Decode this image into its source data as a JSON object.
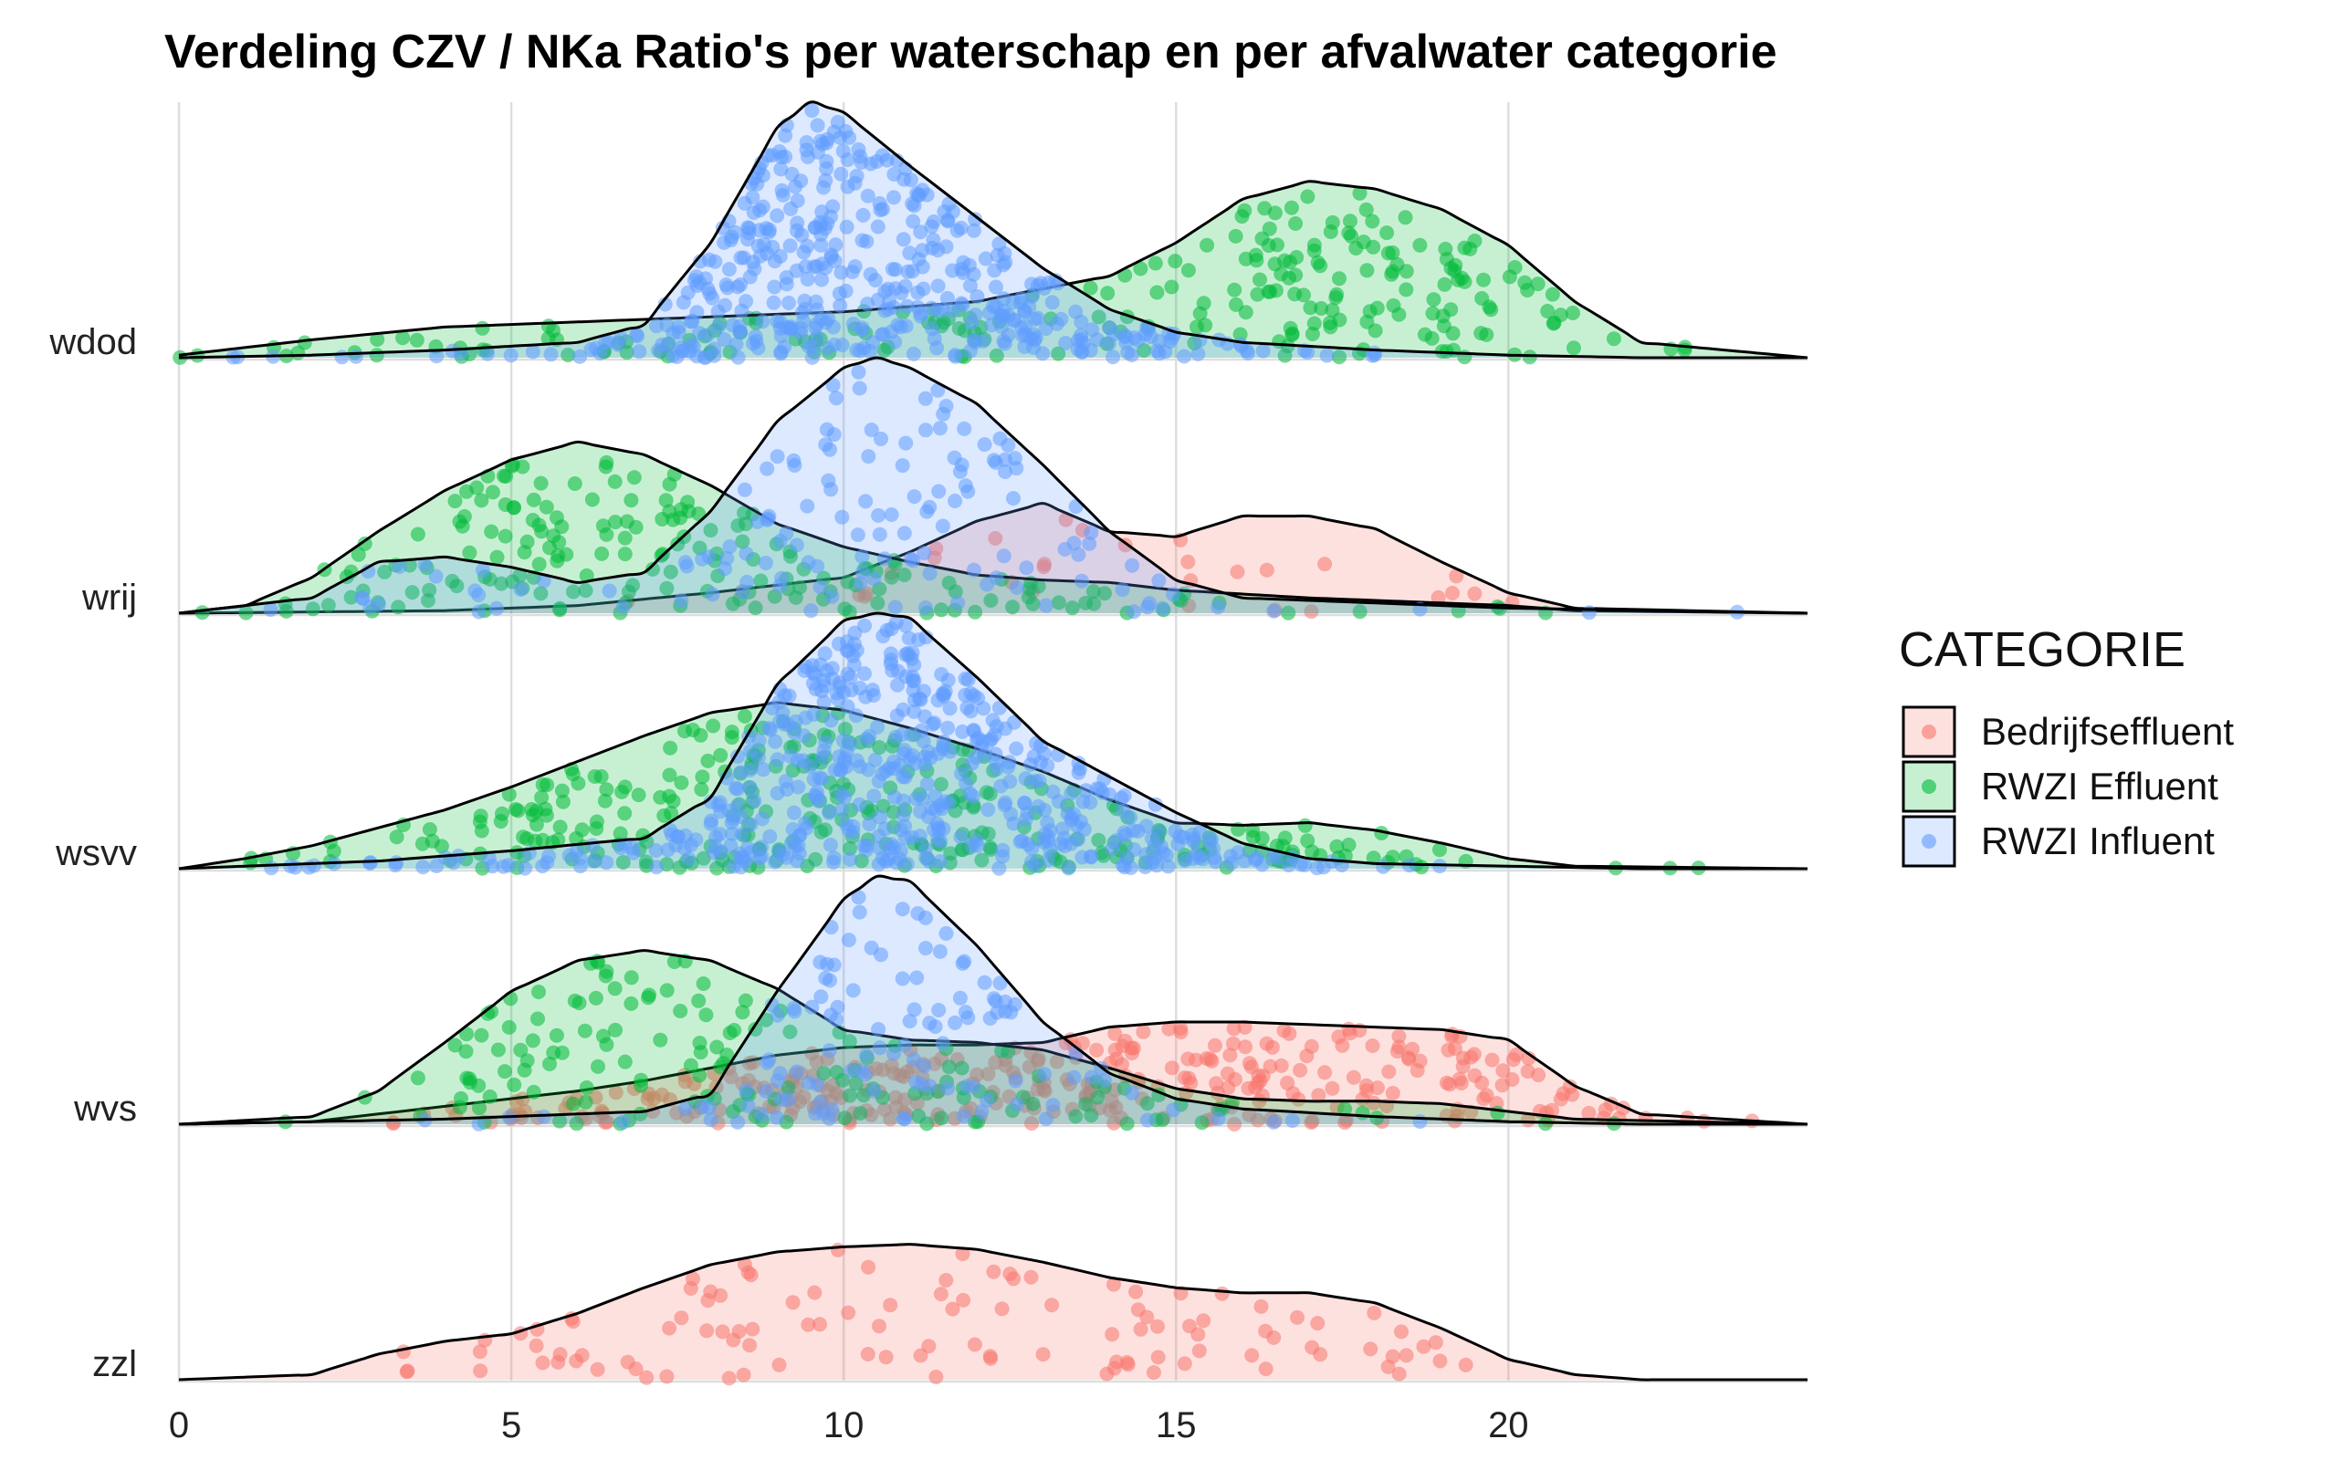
{
  "chart_data": {
    "type": "ridgeline",
    "title": "Verdeling CZV / NKa Ratio's per waterschap en per afvalwater categorie",
    "xlabel": "",
    "ylabel": "",
    "xlim": [
      0,
      24.5
    ],
    "x_ticks": [
      0,
      5,
      10,
      15,
      20
    ],
    "grid": true,
    "legend": {
      "title": "CATEGORIE",
      "position": "right",
      "entries": [
        {
          "name": "Bedrijfseffluent",
          "color": "#F8766D"
        },
        {
          "name": "RWZI Effluent",
          "color": "#00BA38"
        },
        {
          "name": "RWZI Influent",
          "color": "#619CFF"
        }
      ]
    },
    "groups": [
      {
        "name": "wdod",
        "series": [
          {
            "category": "RWZI Effluent",
            "n_points": 230,
            "density_x": [
              0,
              2,
              4,
              6,
              8,
              10,
              12,
              14,
              15,
              16,
              17,
              18,
              19,
              20,
              21,
              22,
              24.5
            ],
            "density_y": [
              0.01,
              0.07,
              0.12,
              0.14,
              0.16,
              0.18,
              0.22,
              0.32,
              0.45,
              0.62,
              0.69,
              0.66,
              0.58,
              0.44,
              0.22,
              0.06,
              0.0
            ]
          },
          {
            "category": "RWZI Influent",
            "n_points": 460,
            "density_x": [
              0,
              2,
              4,
              6,
              7,
              8,
              9,
              9.5,
              10,
              11,
              12,
              13,
              14,
              15,
              16,
              18,
              20,
              22,
              24.5
            ],
            "density_y": [
              0.0,
              0.01,
              0.03,
              0.06,
              0.13,
              0.45,
              0.9,
              1.0,
              0.96,
              0.75,
              0.55,
              0.35,
              0.19,
              0.1,
              0.06,
              0.03,
              0.01,
              0.0,
              0.0
            ]
          }
        ]
      },
      {
        "name": "wrij",
        "series": [
          {
            "category": "Bedrijfseffluent",
            "n_points": 30,
            "density_x": [
              0,
              4,
              6,
              8,
              10,
              11,
              12,
              13,
              14,
              15,
              16,
              17,
              18,
              19,
              20,
              21,
              24.5
            ],
            "density_y": [
              0.0,
              0.01,
              0.03,
              0.08,
              0.14,
              0.24,
              0.36,
              0.43,
              0.32,
              0.3,
              0.38,
              0.38,
              0.33,
              0.2,
              0.08,
              0.02,
              0.0
            ]
          },
          {
            "category": "RWZI Effluent",
            "n_points": 190,
            "density_x": [
              0,
              1,
              2,
              3,
              4,
              5,
              6,
              7,
              8,
              9,
              10,
              11,
              12,
              13,
              14,
              15,
              17,
              19,
              20,
              21,
              24.5
            ],
            "density_y": [
              0.0,
              0.03,
              0.14,
              0.32,
              0.48,
              0.6,
              0.67,
              0.62,
              0.5,
              0.35,
              0.26,
              0.2,
              0.15,
              0.13,
              0.12,
              0.09,
              0.06,
              0.04,
              0.03,
              0.01,
              0.0
            ]
          },
          {
            "category": "RWZI Influent",
            "n_points": 140,
            "density_x": [
              0,
              2,
              3,
              4,
              5,
              6,
              7,
              8,
              9,
              10,
              10.5,
              11,
              12,
              13,
              14,
              15,
              16,
              18,
              20,
              24.5
            ],
            "density_y": [
              0.0,
              0.06,
              0.2,
              0.22,
              0.18,
              0.12,
              0.16,
              0.4,
              0.75,
              0.96,
              1.0,
              0.96,
              0.82,
              0.58,
              0.32,
              0.13,
              0.06,
              0.04,
              0.02,
              0.0
            ]
          }
        ]
      },
      {
        "name": "wsvv",
        "series": [
          {
            "category": "RWZI Effluent",
            "n_points": 300,
            "density_x": [
              0,
              1,
              2,
              3,
              4,
              5,
              6,
              7,
              8,
              9,
              10,
              11,
              12,
              13,
              14,
              15,
              16,
              17,
              18,
              19,
              20,
              21,
              24.5
            ],
            "density_y": [
              0.0,
              0.04,
              0.09,
              0.16,
              0.23,
              0.32,
              0.42,
              0.52,
              0.61,
              0.65,
              0.62,
              0.55,
              0.47,
              0.38,
              0.27,
              0.18,
              0.17,
              0.18,
              0.15,
              0.1,
              0.04,
              0.01,
              0.0
            ]
          },
          {
            "category": "RWZI Influent",
            "n_points": 520,
            "density_x": [
              0,
              1,
              3,
              5,
              7,
              8,
              9,
              10,
              10.5,
              11,
              12,
              13,
              14,
              15,
              16,
              17,
              18,
              20,
              22,
              24.5
            ],
            "density_y": [
              0.0,
              0.01,
              0.03,
              0.07,
              0.12,
              0.28,
              0.72,
              0.97,
              1.0,
              0.98,
              0.75,
              0.5,
              0.36,
              0.22,
              0.1,
              0.04,
              0.02,
              0.01,
              0.0,
              0.0
            ]
          }
        ]
      },
      {
        "name": "wvs",
        "series": [
          {
            "category": "Bedrijfseffluent",
            "n_points": 330,
            "density_x": [
              0,
              2,
              3,
              4,
              5,
              6,
              7,
              8,
              9,
              10,
              11,
              12,
              13,
              14,
              15,
              16,
              17,
              18,
              19,
              20,
              21,
              22,
              24.5
            ],
            "density_y": [
              0.0,
              0.01,
              0.04,
              0.07,
              0.1,
              0.13,
              0.17,
              0.22,
              0.27,
              0.3,
              0.31,
              0.31,
              0.32,
              0.38,
              0.4,
              0.4,
              0.39,
              0.38,
              0.37,
              0.33,
              0.15,
              0.04,
              0.0
            ]
          },
          {
            "category": "RWZI Effluent",
            "n_points": 160,
            "density_x": [
              0,
              2,
              3,
              4,
              5,
              6,
              7,
              8,
              9,
              10,
              11,
              12,
              13,
              14,
              15,
              16,
              17,
              18,
              19,
              20,
              21,
              24.5
            ],
            "density_y": [
              0.0,
              0.03,
              0.13,
              0.32,
              0.52,
              0.64,
              0.68,
              0.64,
              0.53,
              0.37,
              0.33,
              0.32,
              0.29,
              0.22,
              0.14,
              0.1,
              0.09,
              0.09,
              0.08,
              0.05,
              0.02,
              0.0
            ]
          },
          {
            "category": "RWZI Influent",
            "n_points": 120,
            "density_x": [
              0,
              2,
              4,
              6,
              7,
              8,
              9,
              10,
              10.5,
              11,
              12,
              13,
              14,
              15,
              16,
              18,
              20,
              22,
              24.5
            ],
            "density_y": [
              0.0,
              0.01,
              0.02,
              0.04,
              0.05,
              0.12,
              0.52,
              0.88,
              0.97,
              0.95,
              0.7,
              0.4,
              0.2,
              0.1,
              0.06,
              0.03,
              0.01,
              0.0,
              0.0
            ]
          }
        ]
      },
      {
        "name": "zzl",
        "series": [
          {
            "category": "Bedrijfseffluent",
            "n_points": 110,
            "density_x": [
              0,
              2,
              3,
              4,
              5,
              6,
              7,
              8,
              9,
              10,
              11,
              12,
              13,
              14,
              15,
              16,
              17,
              18,
              19,
              20,
              21,
              22,
              24.5
            ],
            "density_y": [
              0.0,
              0.02,
              0.1,
              0.15,
              0.18,
              0.26,
              0.36,
              0.45,
              0.5,
              0.52,
              0.53,
              0.51,
              0.46,
              0.4,
              0.36,
              0.34,
              0.34,
              0.3,
              0.2,
              0.08,
              0.02,
              0.0,
              0.0
            ]
          }
        ]
      }
    ]
  }
}
